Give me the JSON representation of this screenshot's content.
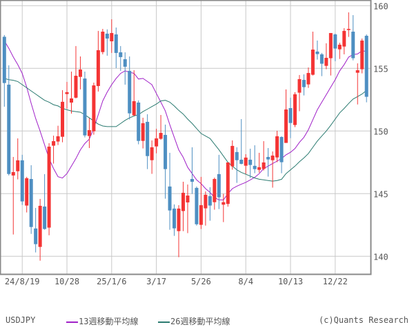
{
  "chart_data": {
    "type": "candlestick",
    "symbol": "USDJPY",
    "period": "weekly",
    "ylim": [
      138,
      160.5
    ],
    "yticks": [
      140,
      145,
      150,
      155,
      160
    ],
    "xtick_labels": [
      "24/8/19",
      "10/28",
      "25/1/6",
      "3/17",
      "5/26",
      "8/4",
      "10/13",
      "12/22"
    ],
    "xtick_dates": [
      "2024-08-19",
      "2024-10-28",
      "2025-01-06",
      "2025-03-17",
      "2025-05-26",
      "2025-08-04",
      "2025-10-13",
      "2025-12-22"
    ],
    "grid": true,
    "colors": {
      "up": "#f43434",
      "down": "#4e8fc2",
      "ma13": "#a020c8",
      "ma26": "#2a7a70",
      "grid": "#c8c8c8",
      "border": "#8a8a8a"
    },
    "dates": [
      "2024-07-22",
      "2024-07-29",
      "2024-08-05",
      "2024-08-12",
      "2024-08-19",
      "2024-08-26",
      "2024-09-02",
      "2024-09-09",
      "2024-09-16",
      "2024-09-23",
      "2024-09-30",
      "2024-10-07",
      "2024-10-14",
      "2024-10-21",
      "2024-10-28",
      "2024-11-04",
      "2024-11-11",
      "2024-11-18",
      "2024-11-25",
      "2024-12-02",
      "2024-12-09",
      "2024-12-16",
      "2024-12-23",
      "2024-12-30",
      "2025-01-06",
      "2025-01-13",
      "2025-01-20",
      "2025-01-27",
      "2025-02-03",
      "2025-02-10",
      "2025-02-17",
      "2025-02-24",
      "2025-03-03",
      "2025-03-10",
      "2025-03-17",
      "2025-03-24",
      "2025-03-31",
      "2025-04-07",
      "2025-04-14",
      "2025-04-21",
      "2025-04-28",
      "2025-05-05",
      "2025-05-12",
      "2025-05-19",
      "2025-05-26",
      "2025-06-02",
      "2025-06-09",
      "2025-06-16",
      "2025-06-23",
      "2025-06-30",
      "2025-07-07",
      "2025-07-14",
      "2025-07-21",
      "2025-07-28",
      "2025-08-04",
      "2025-08-11",
      "2025-08-18",
      "2025-08-25",
      "2025-09-01",
      "2025-09-08",
      "2025-09-15",
      "2025-09-22",
      "2025-09-29",
      "2025-10-06",
      "2025-10-13",
      "2025-10-20",
      "2025-10-27",
      "2025-11-03",
      "2025-11-10",
      "2025-11-17",
      "2025-11-24",
      "2025-12-01",
      "2025-12-08",
      "2025-12-15",
      "2025-12-22",
      "2025-12-29",
      "2026-01-05",
      "2026-01-12",
      "2026-01-19",
      "2026-01-26",
      "2026-02-02",
      "2026-02-09"
    ],
    "ohlc": [
      [
        157.52,
        157.66,
        151.94,
        153.83
      ],
      [
        153.7,
        155.24,
        146.45,
        146.57
      ],
      [
        146.45,
        147.93,
        141.74,
        146.72
      ],
      [
        146.79,
        149.41,
        146.14,
        147.66
      ],
      [
        147.66,
        148.1,
        144.1,
        144.38
      ],
      [
        144.05,
        146.34,
        143.5,
        146.23
      ],
      [
        146.17,
        147.27,
        141.79,
        142.34
      ],
      [
        142.22,
        143.86,
        140.31,
        140.97
      ],
      [
        140.75,
        144.58,
        139.65,
        144.03
      ],
      [
        143.97,
        146.56,
        142.12,
        142.18
      ],
      [
        142.29,
        149.03,
        141.68,
        148.75
      ],
      [
        148.83,
        149.63,
        147.4,
        149.19
      ],
      [
        149.16,
        150.42,
        148.88,
        149.58
      ],
      [
        149.54,
        153.26,
        149.1,
        152.33
      ],
      [
        152.95,
        153.92,
        151.78,
        153.1
      ],
      [
        152.27,
        154.74,
        151.39,
        152.6
      ],
      [
        152.66,
        156.78,
        152.6,
        154.41
      ],
      [
        154.32,
        155.95,
        153.32,
        154.91
      ],
      [
        154.19,
        154.74,
        149.49,
        149.65
      ],
      [
        149.6,
        151.03,
        148.64,
        150.07
      ],
      [
        149.98,
        153.86,
        149.71,
        153.64
      ],
      [
        153.59,
        157.99,
        153.15,
        156.45
      ],
      [
        156.3,
        158.15,
        156.12,
        157.93
      ],
      [
        157.77,
        158.11,
        156.01,
        157.38
      ],
      [
        157.16,
        158.92,
        156.23,
        157.82
      ],
      [
        157.71,
        158.26,
        155.02,
        156.23
      ],
      [
        156.28,
        156.78,
        154.8,
        155.9
      ],
      [
        155.73,
        156.28,
        153.7,
        155.13
      ],
      [
        154.8,
        155.95,
        150.92,
        151.41
      ],
      [
        151.25,
        154.85,
        151.19,
        152.38
      ],
      [
        152.27,
        152.44,
        148.94,
        149.21
      ],
      [
        149.21,
        151.06,
        148.61,
        150.62
      ],
      [
        150.73,
        151.34,
        146.96,
        148.0
      ],
      [
        147.67,
        149.25,
        146.58,
        148.7
      ],
      [
        148.77,
        150.18,
        148.22,
        149.41
      ],
      [
        149.38,
        151.28,
        149.3,
        149.85
      ],
      [
        149.69,
        150.51,
        144.6,
        146.96
      ],
      [
        145.57,
        148.26,
        142.12,
        143.66
      ],
      [
        143.81,
        144.14,
        141.63,
        142.23
      ],
      [
        142.01,
        144.08,
        139.93,
        143.81
      ],
      [
        143.61,
        145.95,
        142.01,
        145.07
      ],
      [
        144.3,
        145.73,
        141.85,
        144.85
      ],
      [
        146.17,
        148.7,
        144.98,
        145.95
      ],
      [
        145.46,
        145.57,
        142.45,
        142.56
      ],
      [
        142.51,
        146.34,
        142.18,
        144.08
      ],
      [
        143.83,
        145.18,
        142.45,
        144.91
      ],
      [
        144.8,
        145.51,
        142.84,
        144.05
      ],
      [
        144.32,
        146.28,
        143.72,
        146.17
      ],
      [
        146.56,
        148.1,
        143.77,
        144.71
      ],
      [
        144.12,
        144.98,
        142.73,
        144.32
      ],
      [
        144.18,
        147.49,
        143.96,
        147.49
      ],
      [
        147.18,
        149.25,
        146.91,
        148.81
      ],
      [
        148.32,
        148.7,
        145.86,
        147.67
      ],
      [
        147.71,
        150.95,
        147.34,
        147.38
      ],
      [
        147.23,
        148.15,
        146.58,
        147.88
      ],
      [
        147.71,
        148.59,
        146.25,
        147.29
      ],
      [
        147.22,
        148.86,
        146.63,
        146.96
      ],
      [
        146.9,
        148.26,
        146.68,
        147.11
      ],
      [
        146.97,
        149.19,
        146.85,
        147.49
      ],
      [
        147.93,
        148.64,
        146.36,
        147.73
      ],
      [
        147.67,
        148.37,
        145.48,
        148.04
      ],
      [
        147.89,
        150.02,
        147.51,
        149.58
      ],
      [
        149.52,
        149.58,
        146.63,
        147.51
      ],
      [
        149.05,
        153.32,
        149.05,
        151.72
      ],
      [
        151.83,
        152.66,
        149.43,
        150.64
      ],
      [
        150.48,
        153.1,
        150.31,
        152.93
      ],
      [
        153.06,
        154.47,
        151.58,
        154.14
      ],
      [
        154.08,
        154.52,
        152.84,
        153.5
      ],
      [
        153.72,
        155.07,
        153.44,
        154.63
      ],
      [
        154.49,
        157.93,
        154.43,
        156.5
      ],
      [
        156.34,
        157.22,
        155.7,
        156.14
      ],
      [
        156.12,
        156.23,
        154.38,
        155.37
      ],
      [
        155.2,
        157.0,
        154.93,
        155.84
      ],
      [
        155.81,
        157.82,
        154.43,
        157.82
      ],
      [
        157.71,
        157.77,
        155.57,
        156.58
      ],
      [
        156.52,
        157.05,
        155.75,
        156.89
      ],
      [
        156.74,
        158.21,
        156.12,
        157.99
      ],
      [
        158.06,
        159.47,
        157.51,
        158.15
      ],
      [
        157.93,
        159.25,
        155.64,
        155.81
      ],
      [
        154.65,
        155.4,
        152.12,
        154.85
      ],
      [
        154.93,
        157.38,
        154.6,
        157.22
      ],
      [
        157.6,
        157.71,
        152.29,
        152.73
      ]
    ],
    "series": [
      {
        "name": "13週移動平均線",
        "values": [
          157.2,
          156.6,
          155.9,
          155.3,
          154.6,
          153.5,
          152.2,
          151.0,
          150.0,
          148.9,
          147.8,
          147.0,
          146.35,
          146.25,
          146.6,
          147.2,
          147.8,
          148.5,
          149.0,
          149.35,
          150.2,
          151.3,
          152.4,
          153.1,
          153.7,
          154.2,
          154.6,
          154.8,
          154.7,
          154.6,
          154.15,
          154.2,
          153.95,
          153.7,
          153.0,
          152.3,
          151.6,
          150.5,
          149.5,
          148.5,
          147.9,
          147.1,
          146.6,
          146.1,
          145.8,
          145.4,
          145.1,
          144.7,
          144.5,
          144.5,
          145.0,
          145.4,
          145.6,
          145.75,
          145.9,
          146.1,
          146.3,
          146.6,
          147.0,
          147.2,
          147.4,
          147.6,
          147.8,
          148.1,
          148.3,
          148.6,
          149.1,
          149.5,
          150.1,
          150.9,
          151.7,
          152.3,
          152.9,
          153.5,
          154.1,
          154.8,
          155.3,
          155.9,
          156.1,
          156.15,
          156.4,
          156.35
        ]
      },
      {
        "name": "26週移動平均線",
        "values": [
          154.2,
          154.1,
          154.05,
          153.95,
          153.7,
          153.45,
          153.2,
          152.95,
          152.7,
          152.45,
          152.3,
          152.1,
          152.0,
          151.8,
          151.7,
          151.6,
          151.55,
          151.5,
          151.3,
          151.05,
          150.8,
          150.55,
          150.4,
          150.35,
          150.35,
          150.35,
          150.6,
          150.85,
          151.05,
          151.2,
          151.3,
          151.55,
          151.75,
          151.95,
          152.15,
          152.4,
          152.45,
          152.3,
          152.0,
          151.65,
          151.35,
          150.95,
          150.6,
          150.2,
          149.8,
          149.6,
          149.4,
          148.95,
          148.5,
          148.0,
          147.5,
          147.2,
          146.9,
          146.7,
          146.55,
          146.4,
          146.25,
          146.15,
          146.1,
          146.05,
          146.0,
          146.05,
          146.15,
          146.6,
          146.9,
          147.2,
          147.55,
          147.85,
          148.2,
          148.7,
          149.2,
          149.6,
          150.0,
          150.45,
          150.95,
          151.45,
          151.8,
          152.2,
          152.55,
          152.75,
          152.95,
          153.25
        ]
      }
    ],
    "legend": {
      "symbol": "USDJPY",
      "ma13": "13週移動平均線",
      "ma26": "26週移動平均線",
      "placement": "bottom"
    },
    "credit": "(c)Quants Research"
  }
}
